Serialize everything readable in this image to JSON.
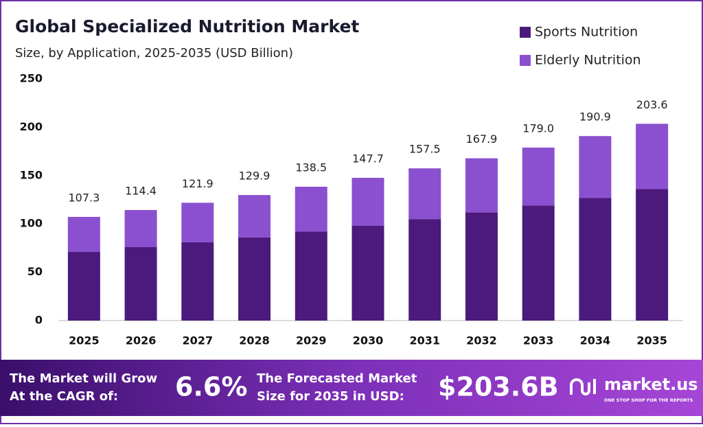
{
  "chart_data": {
    "type": "stacked_bar",
    "title": "Global Specialized Nutrition Market",
    "subtitle": "Size, by Application, 2025-2035 (USD Billion)",
    "categories": [
      "2025",
      "2026",
      "2027",
      "2028",
      "2029",
      "2030",
      "2031",
      "2032",
      "2033",
      "2034",
      "2035"
    ],
    "series": [
      {
        "name": "Sports Nutrition",
        "color": "#4b1a7c",
        "values": [
          71,
          76,
          81,
          86,
          92,
          98,
          105,
          112,
          119,
          127,
          136
        ]
      },
      {
        "name": "Elderly Nutrition",
        "color": "#8a50cf",
        "values": [
          36.3,
          38.4,
          40.9,
          43.9,
          46.5,
          49.7,
          52.5,
          55.9,
          60.0,
          63.9,
          67.6
        ]
      }
    ],
    "totals": [
      107.3,
      114.4,
      121.9,
      129.9,
      138.5,
      147.7,
      157.5,
      167.9,
      179.0,
      190.9,
      203.6
    ],
    "total_labels": [
      "107.3",
      "114.4",
      "121.9",
      "129.9",
      "138.5",
      "147.7",
      "157.5",
      "167.9",
      "179.0",
      "190.9",
      "203.6"
    ],
    "ylim": [
      0,
      250
    ],
    "yticks": [
      0,
      50,
      100,
      150,
      200,
      250
    ],
    "legend": "top-right"
  },
  "banner": {
    "cagr_text": "The Market will Grow At the CAGR of:",
    "cagr": "6.6%",
    "forecast_text": "The Forecasted Market Size for 2035 in USD:",
    "forecast": "$203.6B",
    "brand": "market.us",
    "tagline": "ONE STOP SHOP FOR THE REPORTS"
  }
}
